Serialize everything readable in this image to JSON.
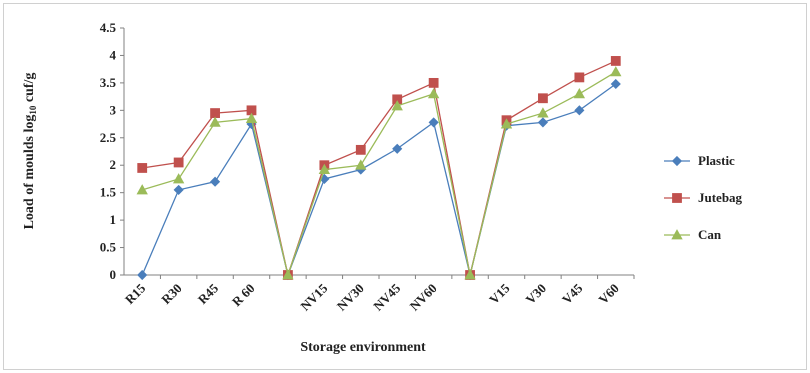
{
  "chart_data": {
    "type": "line",
    "title": "",
    "xlabel": "Storage environment",
    "ylabel_main": "Load of moulds log",
    "ylabel_sub": "10",
    "ylabel_unit": " cuf/g",
    "ylim": [
      0,
      4.5
    ],
    "yticks": [
      "0",
      "0.5",
      "1",
      "1.5",
      "2",
      "2.5",
      "3",
      "3.5",
      "4",
      "4.5"
    ],
    "categories": [
      "R15",
      "R30",
      "R45",
      "R 60",
      "",
      "NV15",
      "NV30",
      "NV45",
      "NV60",
      "",
      "V15",
      "V30",
      "V45",
      "V60"
    ],
    "legend_position": "right",
    "series": [
      {
        "name": "Plastic",
        "color": "#4a7ebb",
        "marker": "diamond",
        "values": [
          0,
          1.55,
          1.7,
          2.75,
          0,
          1.75,
          1.92,
          2.3,
          2.78,
          0,
          2.72,
          2.78,
          3.0,
          3.48
        ]
      },
      {
        "name": "Jutebag",
        "color": "#c0504d",
        "marker": "square",
        "values": [
          1.95,
          2.05,
          2.95,
          3.0,
          0,
          2.0,
          2.28,
          3.2,
          3.5,
          0,
          2.82,
          3.22,
          3.6,
          3.9
        ]
      },
      {
        "name": "Can",
        "color": "#9bbb59",
        "marker": "triangle",
        "values": [
          1.55,
          1.75,
          2.78,
          2.85,
          0,
          1.92,
          2.0,
          3.08,
          3.3,
          0,
          2.75,
          2.95,
          3.3,
          3.7
        ]
      }
    ]
  }
}
